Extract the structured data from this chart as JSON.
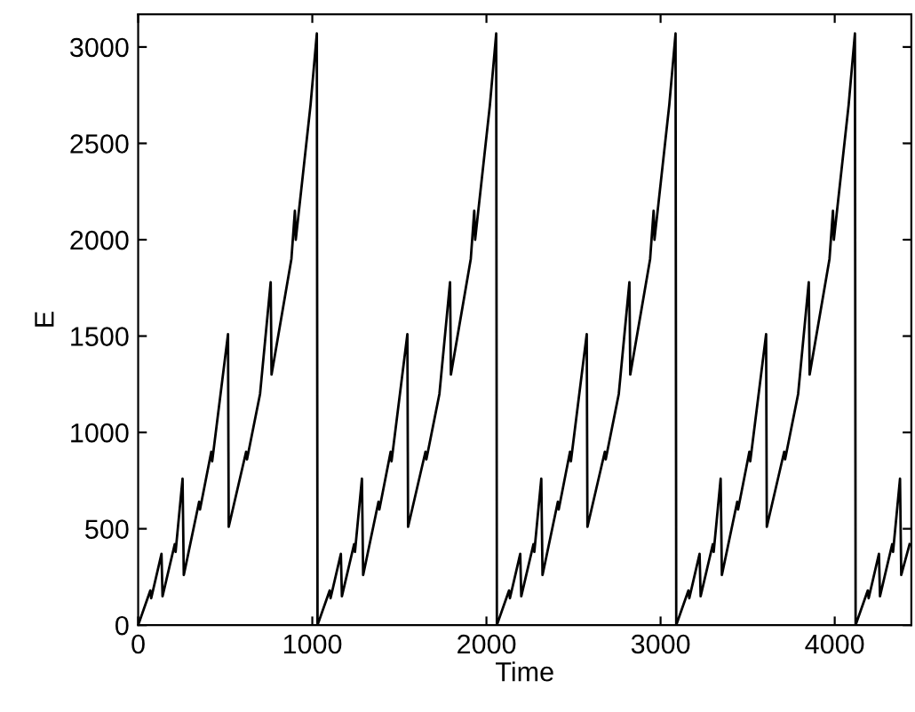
{
  "chart_data": {
    "type": "line",
    "xlabel": "Time",
    "ylabel": "E",
    "x": [
      0,
      70,
      75,
      134,
      140,
      210,
      215,
      255,
      262,
      350,
      355,
      420,
      425,
      516,
      520,
      620,
      625,
      700,
      761,
      766,
      880,
      900,
      905,
      990,
      1026,
      1030,
      1100,
      1105,
      1164,
      1170,
      1240,
      1245,
      1285,
      1292,
      1380,
      1385,
      1450,
      1455,
      1546,
      1550,
      1650,
      1655,
      1730,
      1791,
      1796,
      1910,
      1930,
      1935,
      2020,
      2056,
      2060,
      2130,
      2135,
      2194,
      2200,
      2270,
      2275,
      2315,
      2322,
      2410,
      2415,
      2480,
      2485,
      2576,
      2580,
      2680,
      2685,
      2760,
      2821,
      2826,
      2940,
      2960,
      2965,
      3050,
      3086,
      3090,
      3160,
      3165,
      3224,
      3230,
      3300,
      3305,
      3345,
      3352,
      3440,
      3445,
      3510,
      3515,
      3606,
      3610,
      3710,
      3715,
      3790,
      3851,
      3856,
      3970,
      3990,
      3995,
      4080,
      4116,
      4120,
      4190,
      4195,
      4254,
      4260,
      4330,
      4335,
      4375,
      4382,
      4430
    ],
    "series": [
      {
        "color": "#000000",
        "values": [
          0,
          180,
          140,
          370,
          150,
          420,
          380,
          760,
          260,
          640,
          600,
          900,
          850,
          1510,
          510,
          900,
          860,
          1200,
          1780,
          1300,
          1900,
          2150,
          2000,
          2700,
          3070,
          0,
          180,
          140,
          370,
          150,
          420,
          380,
          760,
          260,
          640,
          600,
          900,
          850,
          1510,
          510,
          900,
          860,
          1200,
          1780,
          1300,
          1900,
          2150,
          2000,
          2700,
          3070,
          0,
          180,
          140,
          370,
          150,
          420,
          380,
          760,
          260,
          640,
          600,
          900,
          850,
          1510,
          510,
          900,
          860,
          1200,
          1780,
          1300,
          1900,
          2150,
          2000,
          2700,
          3070,
          0,
          180,
          140,
          370,
          150,
          420,
          380,
          760,
          260,
          640,
          600,
          900,
          850,
          1510,
          510,
          900,
          860,
          1200,
          1780,
          1300,
          1900,
          2150,
          2000,
          2700,
          3070,
          0,
          180,
          140,
          370,
          150,
          420,
          380,
          760,
          260,
          420
        ]
      }
    ],
    "xlim": [
      0,
      4440
    ],
    "ylim": [
      0,
      3170
    ],
    "xticks": [
      0,
      1000,
      2000,
      3000,
      4000
    ],
    "yticks": [
      0,
      500,
      1000,
      1500,
      2000,
      2500,
      3000
    ],
    "grid": false,
    "marker": "none",
    "line_style": "solid"
  }
}
